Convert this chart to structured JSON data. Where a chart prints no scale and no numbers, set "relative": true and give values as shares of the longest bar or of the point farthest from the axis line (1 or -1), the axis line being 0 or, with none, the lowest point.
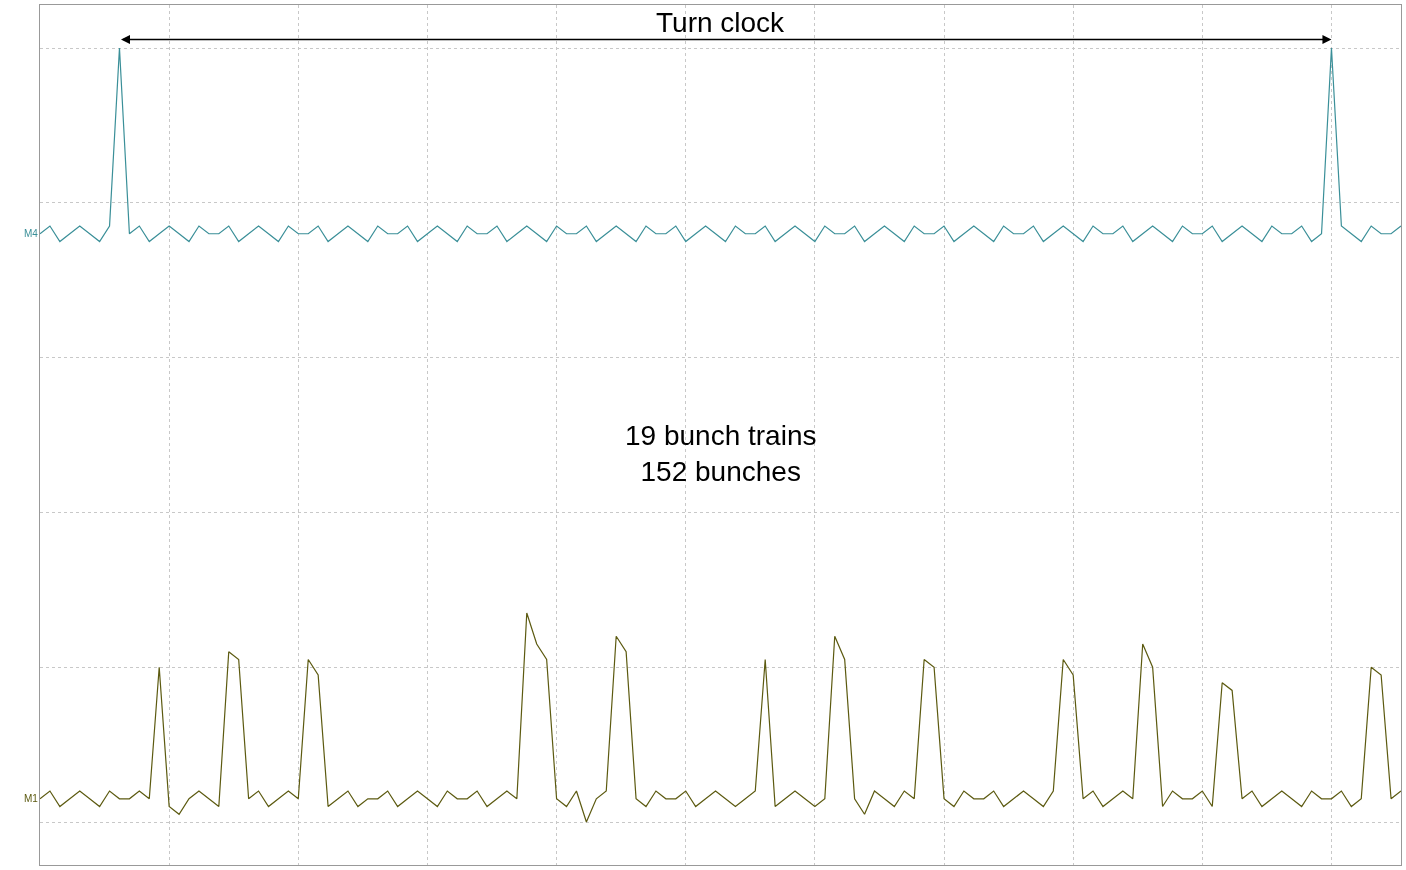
{
  "chart_data": {
    "type": "line",
    "relative": true,
    "grid": true,
    "legend": false,
    "marker": "none",
    "line_style": "solid",
    "annotations": [
      "Turn clock",
      "19 bunch trains\n152 bunches"
    ],
    "categories": [
      null,
      null,
      null,
      null,
      null,
      null,
      null,
      null,
      null,
      null,
      null,
      null,
      null,
      null,
      null,
      null,
      null,
      null,
      null,
      null,
      null,
      null,
      null,
      null,
      null,
      null,
      null,
      null,
      null,
      null,
      null,
      null,
      null,
      null,
      null,
      null,
      null,
      null,
      null,
      null,
      null,
      null,
      null,
      null,
      null,
      null,
      null,
      null,
      null,
      null,
      null,
      null,
      null,
      null,
      null,
      null,
      null,
      null,
      null,
      null,
      null,
      null,
      null,
      null,
      null,
      null,
      null,
      null,
      null,
      null,
      null,
      null,
      null,
      null,
      null,
      null,
      null,
      null,
      null,
      null,
      null,
      null,
      null,
      null,
      null,
      null,
      null,
      null,
      null,
      null,
      null,
      null,
      null,
      null,
      null,
      null,
      null,
      null,
      null,
      null,
      null,
      null,
      null,
      null,
      null,
      null,
      null,
      null,
      null,
      null,
      null,
      null,
      null,
      null,
      null,
      null,
      null,
      null,
      null,
      null,
      null,
      null,
      null,
      null,
      null,
      null,
      null,
      null,
      null,
      null,
      null,
      null,
      null,
      null,
      null,
      null,
      null,
      null
    ],
    "series": [
      {
        "name": "M4",
        "color": "#3a8f98",
        "values": [
          0.76,
          0.77,
          0.75,
          0.76,
          0.77,
          0.76,
          0.75,
          0.77,
          1.0,
          0.76,
          0.77,
          0.75,
          0.76,
          0.77,
          0.76,
          0.75,
          0.77,
          0.76,
          0.76,
          0.77,
          0.75,
          0.76,
          0.77,
          0.76,
          0.75,
          0.77,
          0.76,
          0.76,
          0.77,
          0.75,
          0.76,
          0.77,
          0.76,
          0.75,
          0.77,
          0.76,
          0.76,
          0.77,
          0.75,
          0.76,
          0.77,
          0.76,
          0.75,
          0.77,
          0.76,
          0.76,
          0.77,
          0.75,
          0.76,
          0.77,
          0.76,
          0.75,
          0.77,
          0.76,
          0.76,
          0.77,
          0.75,
          0.76,
          0.77,
          0.76,
          0.75,
          0.77,
          0.76,
          0.76,
          0.77,
          0.75,
          0.76,
          0.77,
          0.76,
          0.75,
          0.77,
          0.76,
          0.76,
          0.77,
          0.75,
          0.76,
          0.77,
          0.76,
          0.75,
          0.77,
          0.76,
          0.76,
          0.77,
          0.75,
          0.76,
          0.77,
          0.76,
          0.75,
          0.77,
          0.76,
          0.76,
          0.77,
          0.75,
          0.76,
          0.77,
          0.76,
          0.75,
          0.77,
          0.76,
          0.76,
          0.77,
          0.75,
          0.76,
          0.77,
          0.76,
          0.75,
          0.77,
          0.76,
          0.76,
          0.77,
          0.75,
          0.76,
          0.77,
          0.76,
          0.75,
          0.77,
          0.76,
          0.76,
          0.77,
          0.75,
          0.76,
          0.77,
          0.76,
          0.75,
          0.77,
          0.76,
          0.76,
          0.77,
          0.75,
          0.76,
          1.0,
          0.77,
          0.76,
          0.75,
          0.77,
          0.76,
          0.76,
          0.77
        ]
      },
      {
        "name": "M1",
        "color": "#5c5a10",
        "values": [
          0.03,
          0.04,
          0.02,
          0.03,
          0.04,
          0.03,
          0.02,
          0.04,
          0.03,
          0.03,
          0.04,
          0.03,
          0.2,
          0.02,
          0.01,
          0.03,
          0.04,
          0.03,
          0.02,
          0.22,
          0.21,
          0.03,
          0.04,
          0.02,
          0.03,
          0.04,
          0.03,
          0.21,
          0.19,
          0.02,
          0.03,
          0.04,
          0.02,
          0.03,
          0.03,
          0.04,
          0.02,
          0.03,
          0.04,
          0.03,
          0.02,
          0.04,
          0.03,
          0.03,
          0.04,
          0.02,
          0.03,
          0.04,
          0.03,
          0.27,
          0.23,
          0.21,
          0.03,
          0.02,
          0.04,
          0.0,
          0.03,
          0.04,
          0.24,
          0.22,
          0.03,
          0.02,
          0.04,
          0.03,
          0.03,
          0.04,
          0.02,
          0.03,
          0.04,
          0.03,
          0.02,
          0.03,
          0.04,
          0.21,
          0.02,
          0.03,
          0.04,
          0.03,
          0.02,
          0.03,
          0.24,
          0.21,
          0.03,
          0.01,
          0.04,
          0.03,
          0.02,
          0.04,
          0.03,
          0.21,
          0.2,
          0.03,
          0.02,
          0.04,
          0.03,
          0.03,
          0.04,
          0.02,
          0.03,
          0.04,
          0.03,
          0.02,
          0.04,
          0.21,
          0.19,
          0.03,
          0.04,
          0.02,
          0.03,
          0.04,
          0.03,
          0.23,
          0.2,
          0.02,
          0.04,
          0.03,
          0.03,
          0.04,
          0.02,
          0.18,
          0.17,
          0.03,
          0.04,
          0.02,
          0.03,
          0.04,
          0.03,
          0.02,
          0.04,
          0.03,
          0.03,
          0.04,
          0.02,
          0.03,
          0.2,
          0.19,
          0.03,
          0.04
        ]
      }
    ]
  }
}
